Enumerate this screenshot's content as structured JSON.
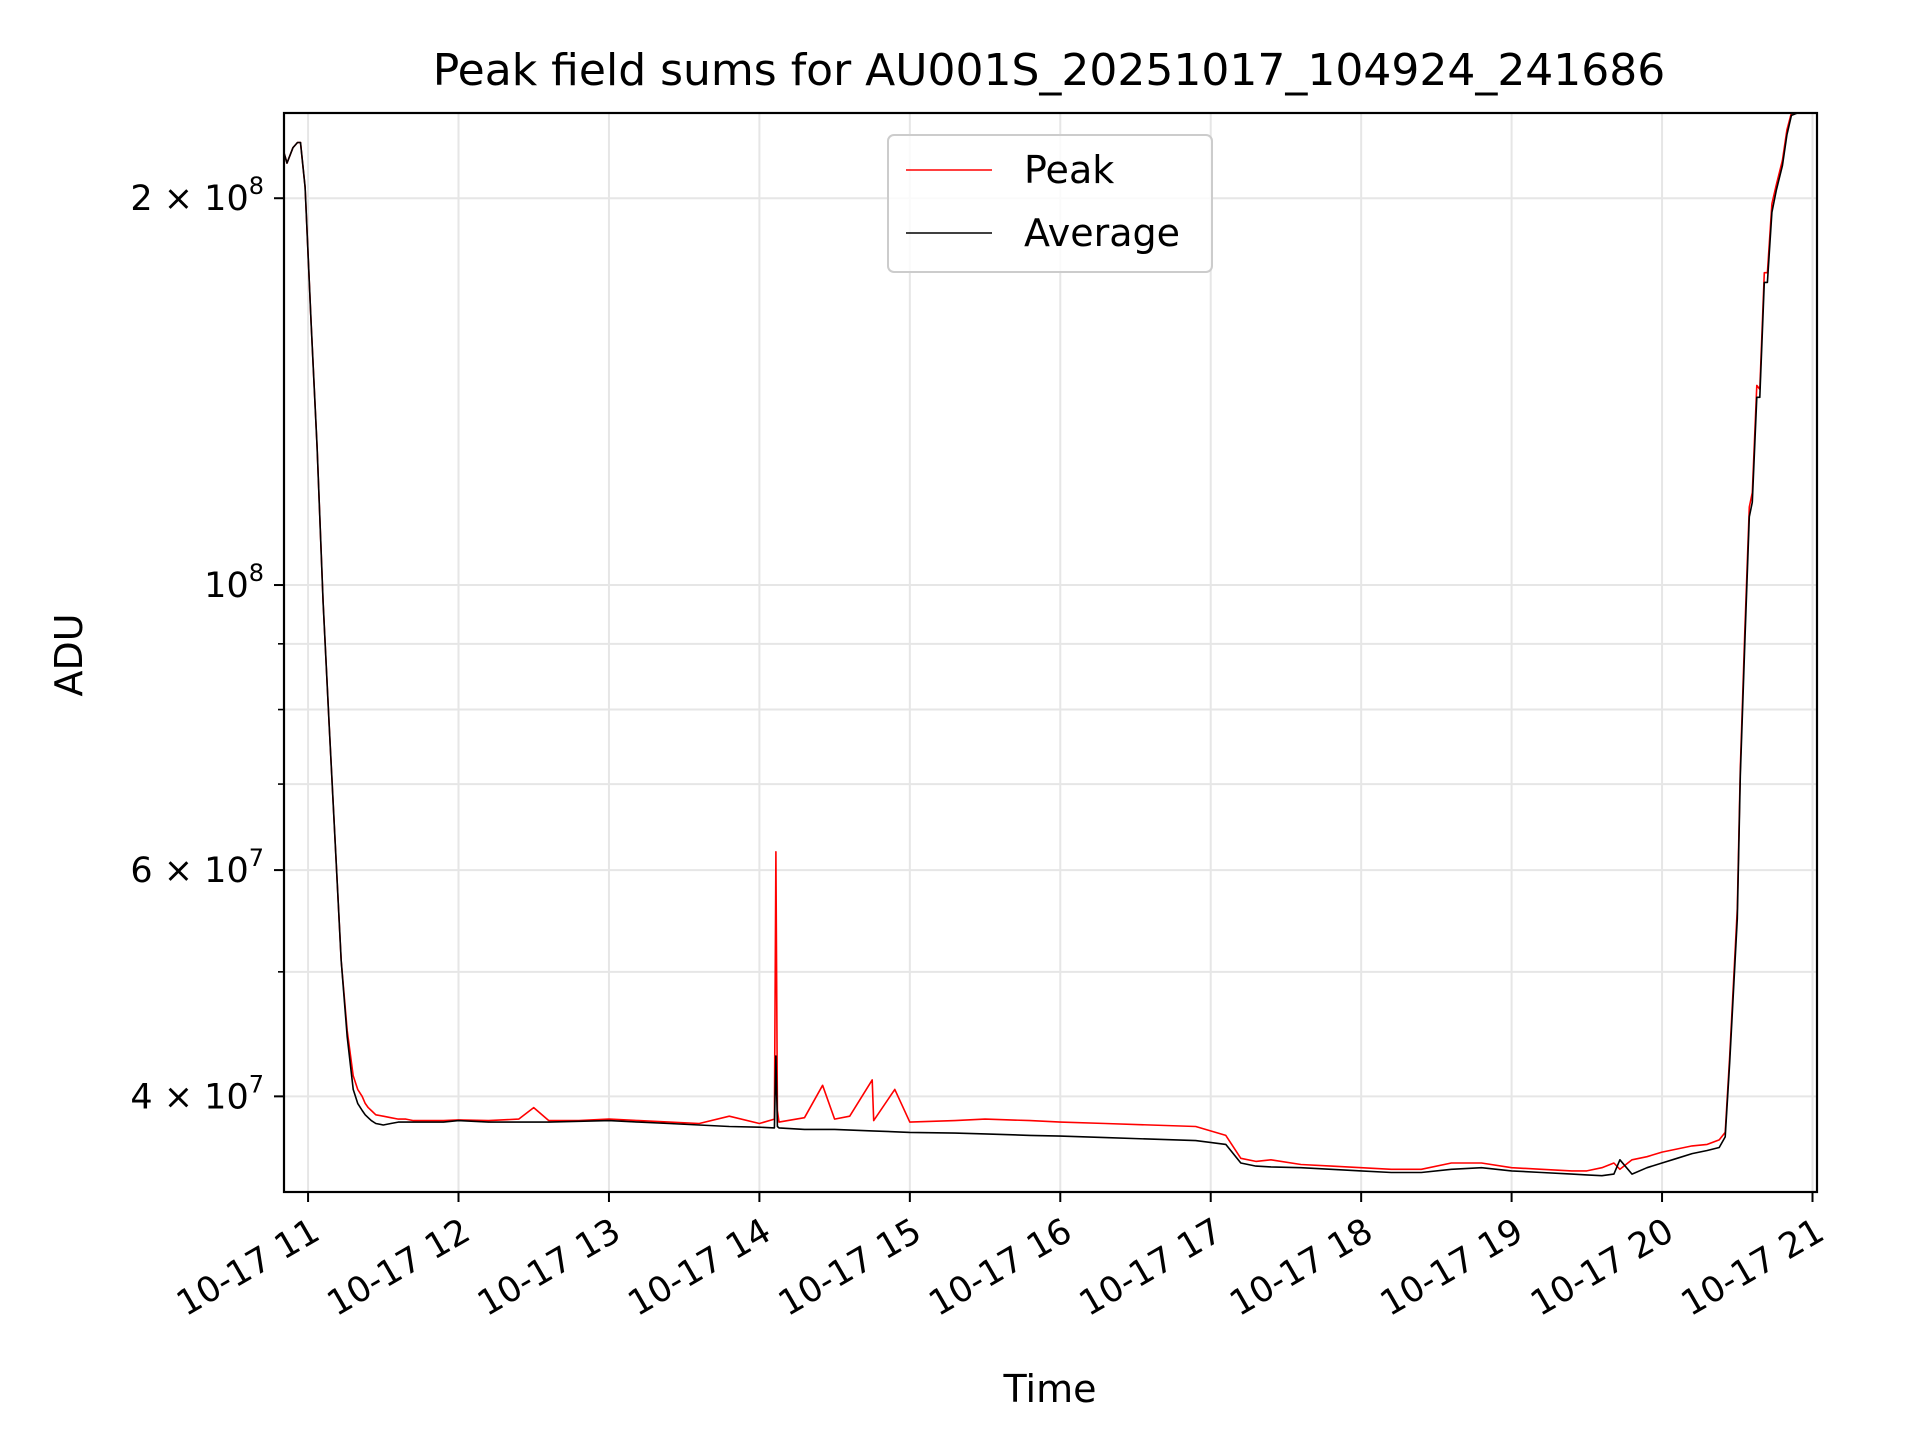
{
  "chart_data": {
    "type": "line",
    "title": "Peak field sums for AU001S_20251017_104924_241686",
    "xlabel": "Time",
    "ylabel": "ADU",
    "y_scale": "log",
    "grid": true,
    "legend_position": "upper-center",
    "xlim_hours": [
      10.84,
      21.03
    ],
    "ylim": [
      33700000,
      233000000
    ],
    "x_ticks": [
      {
        "value": 11,
        "label": "10-17 11"
      },
      {
        "value": 12,
        "label": "10-17 12"
      },
      {
        "value": 13,
        "label": "10-17 13"
      },
      {
        "value": 14,
        "label": "10-17 14"
      },
      {
        "value": 15,
        "label": "10-17 15"
      },
      {
        "value": 16,
        "label": "10-17 16"
      },
      {
        "value": 17,
        "label": "10-17 17"
      },
      {
        "value": 18,
        "label": "10-17 18"
      },
      {
        "value": 19,
        "label": "10-17 19"
      },
      {
        "value": 20,
        "label": "10-17 20"
      },
      {
        "value": 21,
        "label": "10-17 21"
      }
    ],
    "y_ticks_major": [
      {
        "value": 40000000,
        "base": "4 × 10",
        "exp": "7"
      },
      {
        "value": 60000000,
        "base": "6 × 10",
        "exp": "7"
      },
      {
        "value": 100000000,
        "base": "10",
        "exp": "8"
      },
      {
        "value": 200000000,
        "base": "2 × 10",
        "exp": "8"
      }
    ],
    "y_ticks_minor": [
      50000000,
      70000000,
      80000000,
      90000000
    ],
    "series": [
      {
        "name": "Peak",
        "color": "#ff0000",
        "x_hours": [
          10.84,
          10.86,
          10.9,
          10.93,
          10.95,
          10.98,
          11.02,
          11.06,
          11.1,
          11.14,
          11.18,
          11.22,
          11.26,
          11.3,
          11.33,
          11.36,
          11.38,
          11.4,
          11.42,
          11.45,
          11.5,
          11.55,
          11.6,
          11.65,
          11.7,
          11.8,
          11.9,
          12.0,
          12.2,
          12.4,
          12.5,
          12.6,
          12.8,
          13.0,
          13.2,
          13.4,
          13.6,
          13.8,
          14.0,
          14.1,
          14.11,
          14.12,
          14.13,
          14.3,
          14.42,
          14.5,
          14.6,
          14.75,
          14.76,
          14.9,
          15.0,
          15.3,
          15.5,
          15.8,
          16.0,
          16.3,
          16.6,
          16.9,
          17.1,
          17.2,
          17.3,
          17.4,
          17.6,
          17.8,
          18.0,
          18.2,
          18.4,
          18.6,
          18.8,
          19.0,
          19.2,
          19.4,
          19.5,
          19.6,
          19.68,
          19.72,
          19.8,
          19.9,
          20.0,
          20.1,
          20.2,
          20.3,
          20.38,
          20.42,
          20.45,
          20.5,
          20.52,
          20.55,
          20.58,
          20.6,
          20.63,
          20.65,
          20.68,
          20.7,
          20.73,
          20.76,
          20.8,
          20.83,
          20.86,
          20.9,
          20.95,
          21.03
        ],
        "values": [
          217000000,
          213000000,
          219000000,
          221000000,
          221000000,
          204000000,
          160000000,
          128000000,
          97000000,
          78000000,
          63000000,
          51000000,
          45000000,
          41500000,
          40500000,
          40000000,
          39500000,
          39200000,
          39000000,
          38700000,
          38600000,
          38500000,
          38400000,
          38400000,
          38300000,
          38300000,
          38300000,
          38350000,
          38300000,
          38400000,
          39200000,
          38300000,
          38300000,
          38400000,
          38300000,
          38200000,
          38100000,
          38600000,
          38100000,
          38400000,
          62000000,
          39000000,
          38200000,
          38500000,
          40800000,
          38400000,
          38600000,
          41200000,
          38300000,
          40500000,
          38200000,
          38300000,
          38400000,
          38300000,
          38200000,
          38100000,
          38000000,
          37900000,
          37300000,
          35800000,
          35600000,
          35700000,
          35400000,
          35300000,
          35200000,
          35100000,
          35100000,
          35500000,
          35500000,
          35200000,
          35100000,
          35000000,
          35000000,
          35200000,
          35500000,
          35100000,
          35700000,
          35900000,
          36200000,
          36400000,
          36600000,
          36700000,
          37000000,
          37500000,
          43000000,
          56000000,
          72000000,
          92000000,
          115000000,
          118000000,
          143000000,
          142000000,
          175000000,
          175000000,
          198000000,
          205000000,
          214000000,
          226000000,
          233000000,
          233000000,
          233000000,
          233000000
        ]
      },
      {
        "name": "Average",
        "color": "#000000",
        "x_hours": [
          10.84,
          10.86,
          10.9,
          10.93,
          10.95,
          10.98,
          11.02,
          11.06,
          11.1,
          11.14,
          11.18,
          11.22,
          11.26,
          11.3,
          11.33,
          11.36,
          11.38,
          11.4,
          11.42,
          11.45,
          11.5,
          11.55,
          11.6,
          11.65,
          11.7,
          11.8,
          11.9,
          12.0,
          12.2,
          12.4,
          12.6,
          12.8,
          13.0,
          13.2,
          13.4,
          13.6,
          13.8,
          14.0,
          14.1,
          14.11,
          14.12,
          14.13,
          14.3,
          14.5,
          14.75,
          15.0,
          15.3,
          15.5,
          15.8,
          16.0,
          16.3,
          16.6,
          16.9,
          17.1,
          17.2,
          17.3,
          17.4,
          17.6,
          17.8,
          18.0,
          18.2,
          18.4,
          18.6,
          18.8,
          19.0,
          19.2,
          19.4,
          19.5,
          19.6,
          19.68,
          19.72,
          19.8,
          19.9,
          20.0,
          20.1,
          20.2,
          20.3,
          20.38,
          20.42,
          20.45,
          20.5,
          20.52,
          20.55,
          20.58,
          20.6,
          20.63,
          20.65,
          20.68,
          20.7,
          20.73,
          20.76,
          20.8,
          20.83,
          20.86,
          20.9,
          20.95,
          21.03
        ],
        "values": [
          217000000,
          213000000,
          219000000,
          221000000,
          221000000,
          204000000,
          160000000,
          128000000,
          97000000,
          78000000,
          63000000,
          51000000,
          44500000,
          40500000,
          39500000,
          39000000,
          38700000,
          38500000,
          38300000,
          38100000,
          38000000,
          38100000,
          38200000,
          38200000,
          38200000,
          38200000,
          38200000,
          38300000,
          38200000,
          38200000,
          38200000,
          38250000,
          38300000,
          38200000,
          38100000,
          38000000,
          37900000,
          37850000,
          37800000,
          43000000,
          37900000,
          37800000,
          37700000,
          37700000,
          37600000,
          37500000,
          37450000,
          37400000,
          37300000,
          37250000,
          37150000,
          37050000,
          36950000,
          36700000,
          35500000,
          35300000,
          35250000,
          35200000,
          35100000,
          35000000,
          34900000,
          34900000,
          35100000,
          35200000,
          35000000,
          34900000,
          34800000,
          34750000,
          34700000,
          34800000,
          35700000,
          34800000,
          35200000,
          35500000,
          35800000,
          36100000,
          36300000,
          36500000,
          37200000,
          42500000,
          55000000,
          71000000,
          90000000,
          113000000,
          116000000,
          140000000,
          140000000,
          172000000,
          172000000,
          195000000,
          203000000,
          212000000,
          224000000,
          232000000,
          233000000,
          233000000,
          233000000
        ]
      }
    ]
  }
}
